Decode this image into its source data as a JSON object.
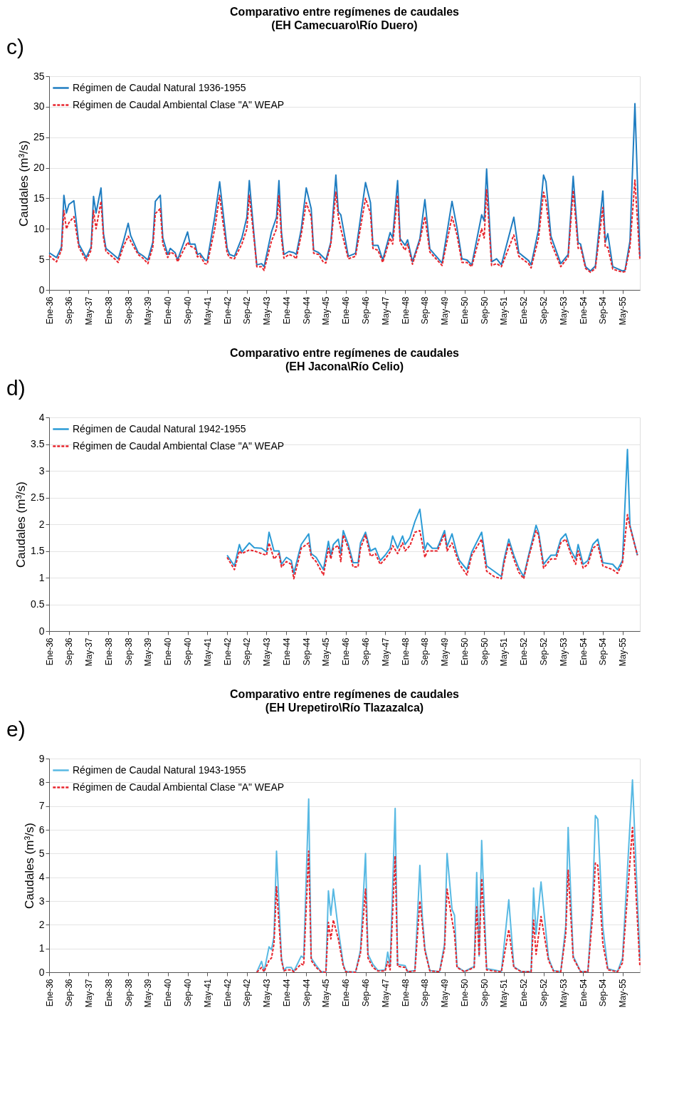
{
  "chart_data": [
    {
      "type": "line",
      "title": "Comparativo entre regímenes de caudales",
      "subtitle": "(EH Camecuaro\\Río Duero)",
      "ylabel": "Caudales (m³/s)",
      "annotations": [
        "c)"
      ],
      "xlim": [
        "1936-01",
        "1955-12"
      ],
      "ylim": [
        0,
        35
      ],
      "yticks": [
        0,
        5,
        10,
        15,
        20,
        25,
        30,
        35
      ],
      "xticks": [
        {
          "value": "1936-01",
          "label": "Ene-36"
        },
        {
          "value": "1936-09",
          "label": "Sep-36"
        },
        {
          "value": "1937-05",
          "label": "May-37"
        },
        {
          "value": "1938-01",
          "label": "Ene-38"
        },
        {
          "value": "1938-09",
          "label": "Sep-38"
        },
        {
          "value": "1939-05",
          "label": "May-39"
        },
        {
          "value": "1940-01",
          "label": "Ene-40"
        },
        {
          "value": "1940-09",
          "label": "Sep-40"
        },
        {
          "value": "1941-05",
          "label": "May-41"
        },
        {
          "value": "1942-01",
          "label": "Ene-42"
        },
        {
          "value": "1942-09",
          "label": "Sep-42"
        },
        {
          "value": "1943-05",
          "label": "May-43"
        },
        {
          "value": "1944-01",
          "label": "Ene-44"
        },
        {
          "value": "1944-09",
          "label": "Sep-44"
        },
        {
          "value": "1945-05",
          "label": "May-45"
        },
        {
          "value": "1946-01",
          "label": "Ene-46"
        },
        {
          "value": "1946-09",
          "label": "Sep-46"
        },
        {
          "value": "1947-05",
          "label": "May-47"
        },
        {
          "value": "1948-01",
          "label": "Ene-48"
        },
        {
          "value": "1948-09",
          "label": "Sep-48"
        },
        {
          "value": "1949-05",
          "label": "May-49"
        },
        {
          "value": "1950-01",
          "label": "Ene-50"
        },
        {
          "value": "1950-09",
          "label": "Sep-50"
        },
        {
          "value": "1951-05",
          "label": "May-51"
        },
        {
          "value": "1952-01",
          "label": "Ene-52"
        },
        {
          "value": "1952-09",
          "label": "Sep-52"
        },
        {
          "value": "1953-05",
          "label": "May-53"
        },
        {
          "value": "1954-01",
          "label": "Ene-54"
        },
        {
          "value": "1954-09",
          "label": "Sep-54"
        },
        {
          "value": "1955-05",
          "label": "May-55"
        }
      ],
      "grid": "y",
      "legend": "top left",
      "x": [
        "1936-01",
        "1936-04",
        "1936-06",
        "1936-07",
        "1936-08",
        "1936-09",
        "1936-11",
        "1937-01",
        "1937-04",
        "1937-06",
        "1937-07",
        "1937-08",
        "1937-10",
        "1937-11",
        "1937-12",
        "1938-03",
        "1938-05",
        "1938-07",
        "1938-09",
        "1938-10",
        "1939-01",
        "1939-03",
        "1939-05",
        "1939-07",
        "1939-08",
        "1939-10",
        "1939-11",
        "1940-01",
        "1940-02",
        "1940-04",
        "1940-05",
        "1940-09",
        "1940-10",
        "1940-12",
        "1941-01",
        "1941-02",
        "1941-04",
        "1941-05",
        "1941-08",
        "1941-10",
        "1941-11",
        "1942-01",
        "1942-02",
        "1942-04",
        "1942-07",
        "1942-09",
        "1942-10",
        "1942-12",
        "1943-01",
        "1943-03",
        "1943-04",
        "1943-07",
        "1943-09",
        "1943-10",
        "1943-11",
        "1943-12",
        "1944-02",
        "1944-04",
        "1944-05",
        "1944-07",
        "1944-09",
        "1944-11",
        "1944-12",
        "1945-02",
        "1945-04",
        "1945-05",
        "1945-07",
        "1945-09",
        "1945-10",
        "1945-11",
        "1946-02",
        "1946-05",
        "1946-09",
        "1946-11",
        "1946-12",
        "1947-02",
        "1947-04",
        "1947-07",
        "1947-08",
        "1947-10",
        "1947-11",
        "1948-01",
        "1948-02",
        "1948-04",
        "1948-07",
        "1948-09",
        "1948-11",
        "1949-04",
        "1949-08",
        "1949-10",
        "1949-12",
        "1950-02",
        "1950-04",
        "1950-08",
        "1950-09",
        "1950-10",
        "1950-12",
        "1951-02",
        "1951-04",
        "1951-09",
        "1951-11",
        "1952-03",
        "1952-04",
        "1952-07",
        "1952-09",
        "1952-10",
        "1952-12",
        "1953-04",
        "1953-07",
        "1953-09",
        "1953-11",
        "1953-12",
        "1954-02",
        "1954-04",
        "1954-06",
        "1954-09",
        "1954-10",
        "1954-11",
        "1955-01",
        "1955-05",
        "1955-06",
        "1955-08",
        "1955-10",
        "1955-12"
      ],
      "series": [
        {
          "name": "Régimen de Caudal Natural 1936-1955",
          "color": "#1f7dc1",
          "line_style": "solid",
          "values": [
            6.1,
            5.3,
            7,
            15.5,
            12.6,
            14,
            14.6,
            7.5,
            5.3,
            7,
            15.3,
            12.6,
            16.7,
            9.2,
            6.8,
            5.8,
            5.1,
            7.8,
            10.9,
            8.9,
            6.1,
            5.6,
            4.9,
            7.8,
            14.5,
            15.5,
            8.5,
            5.8,
            6.8,
            6.1,
            4.9,
            9.5,
            7.5,
            7.5,
            5.8,
            6,
            4.9,
            4.8,
            11.9,
            17.7,
            14,
            6.8,
            5.8,
            5.5,
            8.5,
            11.9,
            17.9,
            8.5,
            4.1,
            4.3,
            3.8,
            9.5,
            11.9,
            17.9,
            9.5,
            5.8,
            6.3,
            6.1,
            5.8,
            9.9,
            16.7,
            13.3,
            6.5,
            6.1,
            5.3,
            4.9,
            7.8,
            18.8,
            12.8,
            12.3,
            5.5,
            6,
            17.6,
            14.3,
            7.3,
            7.3,
            4.9,
            9.4,
            8.5,
            17.9,
            8.4,
            7.3,
            8.2,
            4.6,
            8.4,
            14.8,
            6.7,
            4.4,
            14.5,
            10.2,
            5.1,
            4.9,
            4.1,
            12.3,
            11.3,
            19.8,
            4.6,
            5.1,
            4.1,
            11.9,
            6.1,
            4.8,
            4.1,
            9.9,
            18.8,
            17.7,
            8.8,
            4.3,
            5.8,
            18.6,
            7.7,
            7.5,
            3.8,
            3.1,
            3.9,
            16.2,
            7.8,
            9.2,
            3.8,
            3.1,
            3.2,
            8,
            30.5,
            5.5
          ]
        },
        {
          "name": "Régimen de Caudal Ambiental Clase \"A\" WEAP",
          "color": "#e8242c",
          "line_style": "dashed",
          "values": [
            5.6,
            4.6,
            6.5,
            13,
            10,
            11,
            12,
            7,
            4.8,
            6.5,
            13,
            10,
            14.5,
            8.5,
            6.3,
            5.3,
            4.5,
            7,
            8.8,
            8,
            5.8,
            5.2,
            4.3,
            7,
            12.5,
            13.3,
            7.5,
            5.3,
            6.2,
            5.8,
            4.6,
            7.8,
            7.2,
            6.8,
            5.4,
            5.6,
            4.3,
            4.2,
            10,
            15.5,
            12,
            6,
            5.3,
            5.1,
            7.5,
            10,
            15.5,
            8,
            3.8,
            3.8,
            3.2,
            8,
            10,
            15.5,
            8.5,
            5.2,
            5.8,
            5.5,
            5.1,
            9,
            14.3,
            12,
            6,
            5.8,
            4.5,
            4.4,
            7.5,
            16,
            12,
            10,
            5.1,
            5.5,
            15,
            12.5,
            6.8,
            6.5,
            4.5,
            8.5,
            7.5,
            15.5,
            7.8,
            6.5,
            7.5,
            4.2,
            8,
            12,
            6.2,
            4,
            12,
            9,
            4.5,
            4.5,
            3.8,
            10,
            8.5,
            16.5,
            4,
            4.3,
            3.8,
            9,
            5.5,
            4.3,
            3.6,
            8.5,
            16,
            14.5,
            7.8,
            3.8,
            5.4,
            16.3,
            6.8,
            7,
            3.5,
            2.9,
            3.5,
            13.5,
            7,
            7,
            3.4,
            2.9,
            3,
            7,
            18,
            5
          ]
        }
      ]
    },
    {
      "type": "line",
      "title": "Comparativo entre regímenes de caudales",
      "subtitle": "(EH Jacona\\Río Celio)",
      "ylabel": "Caudales (m³/s)",
      "annotations": [
        "d)"
      ],
      "xlim": [
        "1936-01",
        "1955-12"
      ],
      "ylim": [
        0,
        4
      ],
      "yticks": [
        0,
        0.5,
        1,
        1.5,
        2,
        2.5,
        3,
        3.5,
        4
      ],
      "xticks": [
        {
          "value": "1936-01",
          "label": "Ene-36"
        },
        {
          "value": "1936-09",
          "label": "Sep-36"
        },
        {
          "value": "1937-05",
          "label": "May-37"
        },
        {
          "value": "1938-01",
          "label": "Ene-38"
        },
        {
          "value": "1938-09",
          "label": "Sep-38"
        },
        {
          "value": "1939-05",
          "label": "May-39"
        },
        {
          "value": "1940-01",
          "label": "Ene-40"
        },
        {
          "value": "1940-09",
          "label": "Sep-40"
        },
        {
          "value": "1941-05",
          "label": "May-41"
        },
        {
          "value": "1942-01",
          "label": "Ene-42"
        },
        {
          "value": "1942-09",
          "label": "Sep-42"
        },
        {
          "value": "1943-05",
          "label": "May-43"
        },
        {
          "value": "1944-01",
          "label": "Ene-44"
        },
        {
          "value": "1944-09",
          "label": "Sep-44"
        },
        {
          "value": "1945-05",
          "label": "May-45"
        },
        {
          "value": "1946-01",
          "label": "Ene-46"
        },
        {
          "value": "1946-09",
          "label": "Sep-46"
        },
        {
          "value": "1947-05",
          "label": "May-47"
        },
        {
          "value": "1948-01",
          "label": "Ene-48"
        },
        {
          "value": "1948-09",
          "label": "Sep-48"
        },
        {
          "value": "1949-05",
          "label": "May-49"
        },
        {
          "value": "1950-01",
          "label": "Ene-50"
        },
        {
          "value": "1950-09",
          "label": "Sep-50"
        },
        {
          "value": "1951-05",
          "label": "May-51"
        },
        {
          "value": "1952-01",
          "label": "Ene-52"
        },
        {
          "value": "1952-09",
          "label": "Sep-52"
        },
        {
          "value": "1953-05",
          "label": "May-53"
        },
        {
          "value": "1954-01",
          "label": "Ene-54"
        },
        {
          "value": "1954-09",
          "label": "Sep-54"
        },
        {
          "value": "1955-05",
          "label": "May-55"
        }
      ],
      "grid": "y",
      "legend": "top left",
      "x": [
        "1942-01",
        "1942-04",
        "1942-06",
        "1942-07",
        "1942-10",
        "1942-12",
        "1943-03",
        "1943-05",
        "1943-06",
        "1943-08",
        "1943-10",
        "1943-11",
        "1944-01",
        "1944-03",
        "1944-04",
        "1944-06",
        "1944-07",
        "1944-10",
        "1944-11",
        "1945-01",
        "1945-04",
        "1945-06",
        "1945-07",
        "1945-08",
        "1945-10",
        "1945-11",
        "1945-12",
        "1946-02",
        "1946-04",
        "1946-06",
        "1946-07",
        "1946-09",
        "1946-11",
        "1947-01",
        "1947-03",
        "1947-05",
        "1947-07",
        "1947-08",
        "1947-10",
        "1947-12",
        "1948-01",
        "1948-03",
        "1948-05",
        "1948-07",
        "1948-09",
        "1948-10",
        "1948-12",
        "1949-02",
        "1949-05",
        "1949-06",
        "1949-08",
        "1949-10",
        "1949-11",
        "1950-02",
        "1950-04",
        "1950-08",
        "1950-10",
        "1951-01",
        "1951-04",
        "1951-05",
        "1951-07",
        "1951-09",
        "1951-11",
        "1952-01",
        "1952-03",
        "1952-06",
        "1952-07",
        "1952-09",
        "1952-12",
        "1953-02",
        "1953-04",
        "1953-06",
        "1953-08",
        "1953-10",
        "1953-11",
        "1954-01",
        "1954-03",
        "1954-05",
        "1954-07",
        "1954-09",
        "1955-01",
        "1955-03",
        "1955-05",
        "1955-07",
        "1955-08",
        "1955-11"
      ],
      "series": [
        {
          "name": "Régimen de Caudal Natural 1942-1955",
          "color": "#2b9bd6",
          "line_style": "solid",
          "values": [
            1.42,
            1.22,
            1.62,
            1.48,
            1.65,
            1.56,
            1.55,
            1.48,
            1.85,
            1.5,
            1.5,
            1.25,
            1.38,
            1.32,
            1.08,
            1.45,
            1.62,
            1.82,
            1.45,
            1.38,
            1.15,
            1.68,
            1.42,
            1.62,
            1.72,
            1.45,
            1.88,
            1.62,
            1.28,
            1.28,
            1.65,
            1.85,
            1.5,
            1.55,
            1.32,
            1.42,
            1.55,
            1.78,
            1.55,
            1.78,
            1.62,
            1.75,
            2.05,
            2.28,
            1.52,
            1.65,
            1.55,
            1.55,
            1.88,
            1.58,
            1.82,
            1.45,
            1.32,
            1.15,
            1.48,
            1.85,
            1.22,
            1.12,
            1.02,
            1.32,
            1.72,
            1.42,
            1.18,
            1.02,
            1.42,
            1.98,
            1.85,
            1.25,
            1.42,
            1.42,
            1.72,
            1.82,
            1.52,
            1.35,
            1.62,
            1.25,
            1.32,
            1.62,
            1.72,
            1.28,
            1.25,
            1.15,
            1.32,
            3.4,
            1.98,
            1.42
          ]
        },
        {
          "name": "Régimen de Caudal Ambiental Clase \"A\" WEAP",
          "color": "#e8242c",
          "line_style": "dashed",
          "values": [
            1.38,
            1.15,
            1.5,
            1.45,
            1.52,
            1.5,
            1.45,
            1.42,
            1.65,
            1.35,
            1.45,
            1.2,
            1.3,
            1.25,
            0.98,
            1.35,
            1.55,
            1.65,
            1.4,
            1.3,
            1.05,
            1.55,
            1.35,
            1.55,
            1.6,
            1.3,
            1.8,
            1.55,
            1.2,
            1.2,
            1.55,
            1.8,
            1.4,
            1.45,
            1.25,
            1.35,
            1.48,
            1.6,
            1.45,
            1.65,
            1.5,
            1.6,
            1.85,
            1.88,
            1.38,
            1.5,
            1.5,
            1.5,
            1.82,
            1.5,
            1.65,
            1.38,
            1.25,
            1.05,
            1.42,
            1.72,
            1.12,
            1.02,
            0.98,
            1.25,
            1.65,
            1.35,
            1.1,
            0.98,
            1.38,
            1.88,
            1.8,
            1.18,
            1.35,
            1.35,
            1.65,
            1.72,
            1.45,
            1.25,
            1.5,
            1.18,
            1.25,
            1.55,
            1.62,
            1.22,
            1.15,
            1.08,
            1.28,
            2.18,
            1.95,
            1.42
          ]
        }
      ]
    },
    {
      "type": "line",
      "title": "Comparativo entre regímenes de caudales",
      "subtitle": "(EH Urepetiro\\Río Tlazazalca)",
      "ylabel": "Caudales (m³/s)",
      "annotations": [
        "e)"
      ],
      "xlim": [
        "1936-01",
        "1955-12"
      ],
      "ylim": [
        0,
        9
      ],
      "yticks": [
        0,
        1,
        2,
        3,
        4,
        5,
        6,
        7,
        8,
        9
      ],
      "xticks": [
        {
          "value": "1936-01",
          "label": "Ene-36"
        },
        {
          "value": "1936-09",
          "label": "Sep-36"
        },
        {
          "value": "1937-05",
          "label": "May-37"
        },
        {
          "value": "1938-01",
          "label": "Ene-38"
        },
        {
          "value": "1938-09",
          "label": "Sep-38"
        },
        {
          "value": "1939-05",
          "label": "May-39"
        },
        {
          "value": "1940-01",
          "label": "Ene-40"
        },
        {
          "value": "1940-09",
          "label": "Sep-40"
        },
        {
          "value": "1941-05",
          "label": "May-41"
        },
        {
          "value": "1942-01",
          "label": "Ene-42"
        },
        {
          "value": "1942-09",
          "label": "Sep-42"
        },
        {
          "value": "1943-05",
          "label": "May-43"
        },
        {
          "value": "1944-01",
          "label": "Ene-44"
        },
        {
          "value": "1944-09",
          "label": "Sep-44"
        },
        {
          "value": "1945-05",
          "label": "May-45"
        },
        {
          "value": "1946-01",
          "label": "Ene-46"
        },
        {
          "value": "1946-09",
          "label": "Sep-46"
        },
        {
          "value": "1947-05",
          "label": "May-47"
        },
        {
          "value": "1948-01",
          "label": "Ene-48"
        },
        {
          "value": "1948-09",
          "label": "Sep-48"
        },
        {
          "value": "1949-05",
          "label": "May-49"
        },
        {
          "value": "1950-01",
          "label": "Ene-50"
        },
        {
          "value": "1950-09",
          "label": "Sep-50"
        },
        {
          "value": "1951-05",
          "label": "May-51"
        },
        {
          "value": "1952-01",
          "label": "Ene-52"
        },
        {
          "value": "1952-09",
          "label": "Sep-52"
        },
        {
          "value": "1953-05",
          "label": "May-53"
        },
        {
          "value": "1954-01",
          "label": "Ene-54"
        },
        {
          "value": "1954-09",
          "label": "Sep-54"
        },
        {
          "value": "1955-05",
          "label": "May-55"
        }
      ],
      "grid": "y",
      "legend": "top left",
      "x": [
        "1943-01",
        "1943-03",
        "1943-04",
        "1943-06",
        "1943-07",
        "1943-08",
        "1943-09",
        "1943-11",
        "1943-12",
        "1944-01",
        "1944-03",
        "1944-04",
        "1944-07",
        "1944-08",
        "1944-10",
        "1944-11",
        "1945-01",
        "1945-03",
        "1945-05",
        "1945-06",
        "1945-07",
        "1945-08",
        "1945-10",
        "1945-12",
        "1946-01",
        "1946-05",
        "1946-07",
        "1946-09",
        "1946-10",
        "1946-12",
        "1947-02",
        "1947-05",
        "1947-06",
        "1947-07",
        "1947-09",
        "1947-10",
        "1948-01",
        "1948-02",
        "1948-05",
        "1948-07",
        "1948-08",
        "1948-09",
        "1948-11",
        "1949-03",
        "1949-05",
        "1949-06",
        "1949-08",
        "1949-09",
        "1949-10",
        "1950-01",
        "1950-05",
        "1950-06",
        "1950-07",
        "1950-08",
        "1950-10",
        "1951-01",
        "1951-04",
        "1951-07",
        "1951-09",
        "1951-12",
        "1952-04",
        "1952-05",
        "1952-06",
        "1952-08",
        "1952-11",
        "1953-01",
        "1953-04",
        "1953-06",
        "1953-07",
        "1953-09",
        "1953-12",
        "1954-03",
        "1954-05",
        "1954-06",
        "1954-07",
        "1954-09",
        "1954-11",
        "1955-03",
        "1955-05",
        "1955-09",
        "1955-12"
      ],
      "series": [
        {
          "name": "Régimen de Caudal Natural 1943-1955",
          "color": "#58b9e3",
          "line_style": "solid",
          "values": [
            0,
            0.46,
            0.03,
            1.07,
            0.95,
            1.5,
            5.1,
            0.6,
            0.07,
            0.2,
            0.2,
            0.03,
            0.68,
            0.6,
            7.3,
            0.6,
            0.29,
            0.03,
            0,
            3.43,
            2.4,
            3.5,
            1.8,
            0.33,
            0.03,
            0,
            0.93,
            5,
            0.76,
            0.33,
            0.07,
            0.1,
            0.85,
            0.24,
            6.9,
            0.33,
            0.28,
            0.03,
            0.07,
            4.5,
            2.3,
            1,
            0.07,
            0.03,
            1.2,
            5,
            2.65,
            2.4,
            0.24,
            0.03,
            0.24,
            4.2,
            0.68,
            5.55,
            0.15,
            0.1,
            0.03,
            3.05,
            0.24,
            0.03,
            0.03,
            3.55,
            1.6,
            3.8,
            0.6,
            0.07,
            0.03,
            1.95,
            6.1,
            0.68,
            0.03,
            0.03,
            3.2,
            6.6,
            6.45,
            1.9,
            0.15,
            0.03,
            0.6,
            8.1,
            0.6
          ]
        },
        {
          "name": "Régimen de Caudal Ambiental Clase \"A\" WEAP",
          "color": "#e8242c",
          "line_style": "dashed",
          "values": [
            0,
            0.2,
            0.02,
            0.5,
            0.6,
            1.2,
            3.6,
            0.5,
            0.05,
            0.1,
            0.1,
            0.02,
            0.35,
            0.3,
            5.1,
            0.5,
            0.2,
            0.02,
            0,
            2.1,
            1.4,
            2.2,
            1.4,
            0.25,
            0.02,
            0,
            0.8,
            3.5,
            0.6,
            0.2,
            0.05,
            0.05,
            0.45,
            0.1,
            4.9,
            0.25,
            0.2,
            0.02,
            0.05,
            3,
            2,
            0.9,
            0.05,
            0.02,
            1,
            3.5,
            2.2,
            1.6,
            0.2,
            0.02,
            0.2,
            2.75,
            0.7,
            3.95,
            0.1,
            0.05,
            0.02,
            1.8,
            0.2,
            0.02,
            0.02,
            2.2,
            0.75,
            2.35,
            0.5,
            0.05,
            0.02,
            1.6,
            4.3,
            0.6,
            0.02,
            0.02,
            2.5,
            4.6,
            4.5,
            1.2,
            0.1,
            0.02,
            0.4,
            6.1,
            0.25
          ]
        }
      ]
    }
  ]
}
